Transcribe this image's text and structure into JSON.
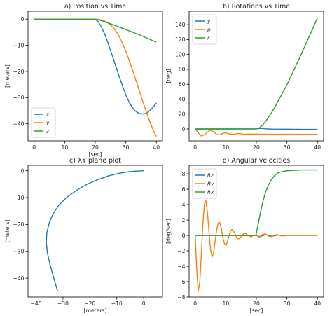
{
  "colors": {
    "blue": "#1f77b4",
    "orange": "#ff7f0e",
    "green": "#2ca02c"
  },
  "chart_data": [
    {
      "type": "line",
      "title": "a) Position vs Time",
      "xlabel": "[sec]",
      "ylabel": "[meters]",
      "xlim": [
        -2,
        42
      ],
      "ylim": [
        -46.5,
        3
      ],
      "xticks": [
        0,
        10,
        20,
        30,
        40
      ],
      "yticks": [
        0,
        -10,
        -20,
        -30,
        -40
      ],
      "legend_position": "lower-left",
      "series": [
        {
          "name": "x",
          "color": "#1f77b4",
          "x": [
            0,
            5,
            10,
            15,
            20,
            21,
            22,
            23,
            24,
            25,
            26,
            27,
            28,
            29,
            30,
            31,
            32,
            33,
            34,
            35,
            36,
            37,
            38,
            39,
            40
          ],
          "y": [
            0,
            0,
            0,
            0,
            -0.1,
            -1,
            -3,
            -5.5,
            -8.5,
            -12,
            -15.5,
            -19,
            -22.5,
            -25.8,
            -29,
            -31.5,
            -33.5,
            -35,
            -35.8,
            -36.2,
            -36.2,
            -35.7,
            -34.8,
            -33.5,
            -32
          ]
        },
        {
          "name": "y",
          "color": "#ff7f0e",
          "x": [
            0,
            5,
            10,
            15,
            20,
            21,
            22,
            23,
            24,
            25,
            26,
            27,
            28,
            29,
            30,
            31,
            32,
            33,
            34,
            35,
            36,
            37,
            38,
            39,
            40
          ],
          "y": [
            0,
            0,
            0,
            0,
            0,
            -0.1,
            -0.3,
            -0.7,
            -1.3,
            -2.2,
            -3.4,
            -5,
            -7,
            -9.5,
            -12.3,
            -15.4,
            -18.8,
            -22.3,
            -25.9,
            -29.5,
            -33,
            -36.4,
            -39.6,
            -42.5,
            -44.8
          ]
        },
        {
          "name": "z",
          "color": "#2ca02c",
          "x": [
            0,
            5,
            10,
            15,
            20,
            21,
            22,
            24,
            26,
            28,
            30,
            32,
            34,
            36,
            38,
            40
          ],
          "y": [
            0,
            0,
            0,
            0,
            -0.1,
            -0.3,
            -0.6,
            -1.4,
            -2.2,
            -3.1,
            -4,
            -4.9,
            -5.8,
            -6.8,
            -7.8,
            -8.8
          ]
        }
      ]
    },
    {
      "type": "line",
      "title": "b) Rotations vs Time",
      "xlabel": "",
      "ylabel": "[deg]",
      "xlim": [
        -2,
        42
      ],
      "ylim": [
        -16,
        158
      ],
      "xticks": [
        0,
        10,
        20,
        30,
        40
      ],
      "yticks": [
        0,
        20,
        40,
        60,
        80,
        100,
        120,
        140
      ],
      "legend_position": "upper-left",
      "series": [
        {
          "name": "y",
          "color": "#1f77b4",
          "x": [
            0,
            10,
            20,
            21,
            22,
            23,
            25,
            30,
            35,
            40
          ],
          "y": [
            0,
            0,
            0,
            0.8,
            0.6,
            0.2,
            -0.2,
            -0.3,
            -0.5,
            -0.5
          ]
        },
        {
          "name": "p",
          "color": "#ff7f0e",
          "x": [
            0,
            1,
            2,
            3,
            4,
            5,
            6,
            7,
            8,
            9,
            10,
            11,
            12,
            13,
            14,
            15,
            16,
            17,
            18,
            19,
            20,
            22,
            25,
            30,
            35,
            40
          ],
          "y": [
            0,
            -5,
            -9.5,
            -8,
            -4,
            -2,
            -3.5,
            -7.5,
            -8,
            -6,
            -5,
            -6.5,
            -7.5,
            -7,
            -6.2,
            -6.5,
            -7.2,
            -7,
            -6.8,
            -7,
            -6.9,
            -7.1,
            -7.1,
            -7.1,
            -7.2,
            -7.2
          ]
        },
        {
          "name": "r",
          "color": "#2ca02c",
          "x": [
            0,
            10,
            20,
            21,
            22,
            23,
            24,
            25,
            26,
            28,
            30,
            35,
            40
          ],
          "y": [
            0,
            0,
            0.2,
            1.5,
            5,
            10,
            16,
            22,
            29,
            44,
            59,
            103,
            149
          ]
        }
      ]
    },
    {
      "type": "line",
      "title": "c) XY plane plot",
      "xlabel": "[meters]",
      "ylabel": "[meters]",
      "xlim": [
        -43,
        7
      ],
      "ylim": [
        -47,
        2
      ],
      "xticks": [
        -40,
        -30,
        -20,
        -10,
        0
      ],
      "yticks": [
        0,
        -10,
        -20,
        -30,
        -40
      ],
      "series": [
        {
          "name": "",
          "color": "#1f77b4",
          "x": [
            0,
            -2,
            -5,
            -9,
            -13,
            -17,
            -21,
            -25,
            -28.5,
            -31.5,
            -33.5,
            -35,
            -36,
            -36.2,
            -35.8,
            -34.8,
            -33.4,
            -32
          ],
          "y": [
            0,
            -0.1,
            -0.3,
            -0.9,
            -1.9,
            -3.3,
            -5,
            -7.3,
            -9.8,
            -12.8,
            -15.7,
            -19,
            -23,
            -26.5,
            -30.5,
            -35,
            -40,
            -44.8
          ]
        }
      ]
    },
    {
      "type": "line",
      "title": "d) Angular velocities",
      "xlabel": "[sec]",
      "ylabel": "[deg/sec]",
      "xlim": [
        -2,
        42
      ],
      "ylim": [
        -8,
        9.1
      ],
      "xticks": [
        0,
        10,
        20,
        30,
        40
      ],
      "yticks": [
        8,
        6,
        4,
        2,
        0,
        -2,
        -4,
        -6,
        -8
      ],
      "legend_position": "upper-left",
      "series": [
        {
          "name": "Rz",
          "color": "#1f77b4",
          "x": [
            0,
            10,
            19.9,
            21,
            22,
            23,
            24,
            25,
            26,
            27,
            28,
            29,
            30,
            32,
            35,
            40
          ],
          "y": [
            0,
            0,
            0,
            -0.15,
            -0.05,
            0.1,
            0.02,
            -0.1,
            -0.04,
            0.06,
            0.02,
            -0.03,
            0,
            0,
            0,
            0
          ]
        },
        {
          "name": "Ry",
          "color": "#ff7f0e",
          "x": [
            0,
            0.5,
            1,
            1.5,
            2,
            2.5,
            3,
            3.5,
            4,
            4.5,
            5,
            5.5,
            6,
            6.5,
            7,
            7.5,
            8,
            8.5,
            9,
            9.5,
            10,
            10.5,
            11,
            11.5,
            12,
            12.5,
            13,
            13.5,
            14,
            14.5,
            15,
            15.5,
            16,
            16.5,
            17,
            17.5,
            18,
            18.5,
            19,
            19.5,
            20,
            21,
            22,
            23,
            24,
            25,
            26,
            27,
            28,
            29,
            30,
            32,
            35,
            40
          ],
          "y": [
            0,
            -4.5,
            -7.2,
            -6,
            -2.5,
            1.5,
            4,
            4.5,
            3,
            0.5,
            -1.8,
            -2.8,
            -2.3,
            -0.8,
            0.7,
            1.6,
            1.7,
            1,
            -0.2,
            -1,
            -1.3,
            -0.9,
            -0.1,
            0.5,
            0.75,
            0.6,
            0.2,
            -0.2,
            -0.45,
            -0.4,
            -0.15,
            0.1,
            0.25,
            0.25,
            0.1,
            -0.05,
            -0.15,
            -0.12,
            -0.02,
            0.05,
            0.08,
            -0.25,
            0.12,
            0.2,
            -0.1,
            -0.15,
            0.05,
            0.1,
            -0.05,
            -0.05,
            0.02,
            0,
            0,
            0
          ]
        },
        {
          "name": "Rx",
          "color": "#2ca02c",
          "x": [
            0,
            10,
            19.9,
            20,
            21,
            22,
            23,
            24,
            25,
            26,
            27,
            28,
            30,
            32,
            35,
            40
          ],
          "y": [
            0,
            0,
            0,
            0.3,
            2.3,
            4.2,
            5.6,
            6.6,
            7.3,
            7.8,
            8.1,
            8.25,
            8.4,
            8.45,
            8.5,
            8.5
          ]
        }
      ]
    }
  ]
}
